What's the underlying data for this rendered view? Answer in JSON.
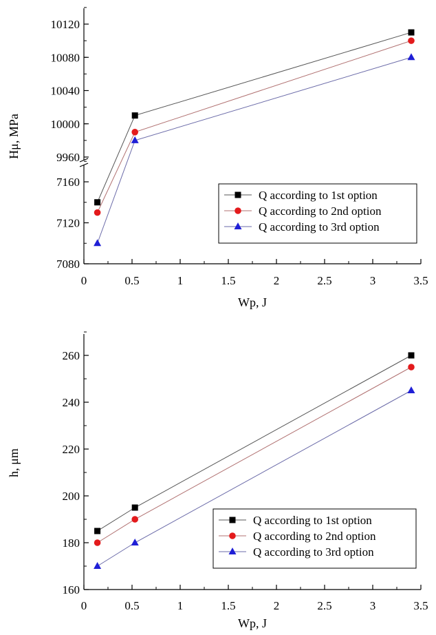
{
  "colors": {
    "series1": "#000000",
    "series2": "#e31a1c",
    "series3": "#1f1fd6",
    "line1": "#555555",
    "line2": "#b07070",
    "line3": "#6a6aa8"
  },
  "chart_data": [
    {
      "type": "line",
      "xlabel": "Wp, J",
      "ylabel": "Hμ, MPa",
      "x": [
        0.14,
        0.53,
        3.4
      ],
      "x_ticks": [
        "0",
        "0.5",
        "1",
        "1.5",
        "2",
        "2.5",
        "3",
        "3.5"
      ],
      "xlim": [
        0,
        3.5
      ],
      "y_axis_break": true,
      "ylim_lower": [
        7080,
        7170
      ],
      "ylim_upper": [
        9960,
        10130
      ],
      "y_ticks_lower": [
        "7080",
        "7120",
        "7160"
      ],
      "y_ticks_upper": [
        "9960",
        "10000",
        "10040",
        "10080",
        "10120"
      ],
      "grid": false,
      "legend_position": "lower-right",
      "series": [
        {
          "name": "Q according to 1st option",
          "marker": "square",
          "values": [
            7140,
            10010,
            10110
          ]
        },
        {
          "name": "Q according to 2nd option",
          "marker": "circle",
          "values": [
            7130,
            9990,
            10100
          ]
        },
        {
          "name": "Q according to 3rd option",
          "marker": "triangle",
          "values": [
            7100,
            9980,
            10080
          ]
        }
      ]
    },
    {
      "type": "line",
      "xlabel": "Wp, J",
      "ylabel": "h, μm",
      "x": [
        0.14,
        0.53,
        3.4
      ],
      "x_ticks": [
        "0",
        "0.5",
        "1",
        "1.5",
        "2",
        "2.5",
        "3",
        "3.5"
      ],
      "xlim": [
        0,
        3.5
      ],
      "ylim": [
        160,
        270
      ],
      "y_ticks": [
        "160",
        "180",
        "200",
        "220",
        "240",
        "260"
      ],
      "grid": false,
      "legend_position": "lower-right",
      "series": [
        {
          "name": "Q according to 1st option",
          "marker": "square",
          "values": [
            185,
            195,
            260
          ]
        },
        {
          "name": "Q according to 2nd option",
          "marker": "circle",
          "values": [
            180,
            190,
            255
          ]
        },
        {
          "name": "Q according to 3rd option",
          "marker": "triangle",
          "values": [
            170,
            180,
            245
          ]
        }
      ]
    }
  ]
}
